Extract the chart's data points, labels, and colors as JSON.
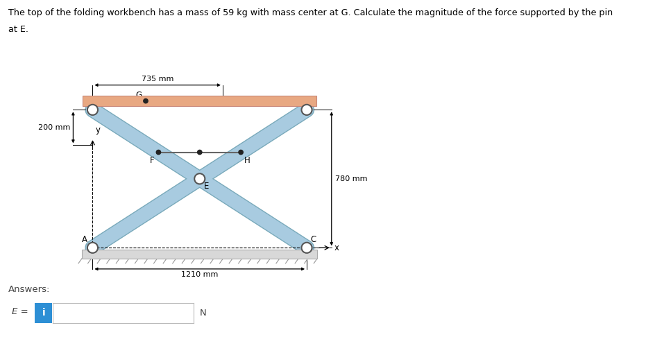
{
  "title_line1": "The top of the folding workbench has a mass of 59 kg with mass center at G. Calculate the magnitude of the force supported by the pin",
  "title_line2": "at E.",
  "answers_label": "Answers:",
  "E_label": "E =",
  "N_label": "N",
  "bench_color": "#E8A882",
  "bench_edge_color": "#c8887a",
  "leg_color": "#A8CBE0",
  "leg_edge_color": "#7aaabb",
  "ground_color": "#d8d8d8",
  "ground_edge_color": "#aaaaaa",
  "bg_color": "#ffffff",
  "dim_735_label": "735 mm",
  "dim_1210_label": "1210 mm",
  "dim_200_label": "200 mm",
  "dim_780_label": "780 mm",
  "pin_color": "#ffffff",
  "pin_edge": "#555555",
  "dot_color": "#222222",
  "blue_box_color": "#2d8fd5",
  "leg_lw": 14,
  "pin_r": 0.038,
  "dot_r": 0.016
}
